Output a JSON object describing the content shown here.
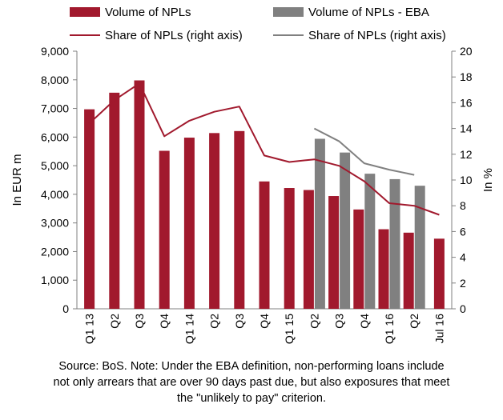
{
  "chart_data": {
    "type": "bar",
    "categories": [
      "Q1 13",
      "Q2",
      "Q3",
      "Q4",
      "Q1 14",
      "Q2",
      "Q3",
      "Q4",
      "Q1 15",
      "Q2",
      "Q3",
      "Q4",
      "Q1 16",
      "Q2",
      "Jul 16"
    ],
    "series": [
      {
        "name": "Volume of NPLs",
        "type": "bar",
        "axis": "left",
        "color": "#a1192d",
        "values": [
          6970,
          7550,
          7980,
          5520,
          5980,
          6140,
          6210,
          4450,
          4220,
          4150,
          3940,
          3470,
          2780,
          2660,
          2450
        ]
      },
      {
        "name": "Volume of NPLs - EBA",
        "type": "bar",
        "axis": "left",
        "color": "#808080",
        "values": [
          null,
          null,
          null,
          null,
          null,
          null,
          null,
          null,
          null,
          5940,
          5460,
          4720,
          4530,
          4300,
          null
        ]
      },
      {
        "name": "Share of NPLs (right axis)",
        "type": "line",
        "axis": "right",
        "color": "#a1192d",
        "values": [
          14.4,
          16.2,
          17.5,
          13.4,
          14.6,
          15.3,
          15.7,
          11.9,
          11.4,
          11.6,
          11.1,
          9.9,
          8.2,
          8.0,
          7.3
        ]
      },
      {
        "name": "Share of NPLs (right axis)",
        "type": "line",
        "axis": "right",
        "color": "#808080",
        "values": [
          null,
          null,
          null,
          null,
          null,
          null,
          null,
          null,
          null,
          14.0,
          13.0,
          11.3,
          10.8,
          10.4,
          null
        ]
      }
    ],
    "ylabel": "In EUR m",
    "ylim": [
      0,
      9000
    ],
    "yticks": [
      "0",
      "1,000",
      "2,000",
      "3,000",
      "4,000",
      "5,000",
      "6,000",
      "7,000",
      "8,000",
      "9,000"
    ],
    "y2label": "In %",
    "y2lim": [
      0,
      20
    ],
    "y2ticks": [
      "0",
      "2",
      "4",
      "6",
      "8",
      "10",
      "12",
      "14",
      "16",
      "18",
      "20"
    ],
    "grid": false,
    "legend_position": "top"
  },
  "note": {
    "line1": "Source: BoS. Note: Under the EBA definition, non-performing loans include",
    "line2": "not only arrears that are over 90 days past due, but also exposures that meet",
    "line3": "the \"unlikely to pay\" criterion."
  }
}
